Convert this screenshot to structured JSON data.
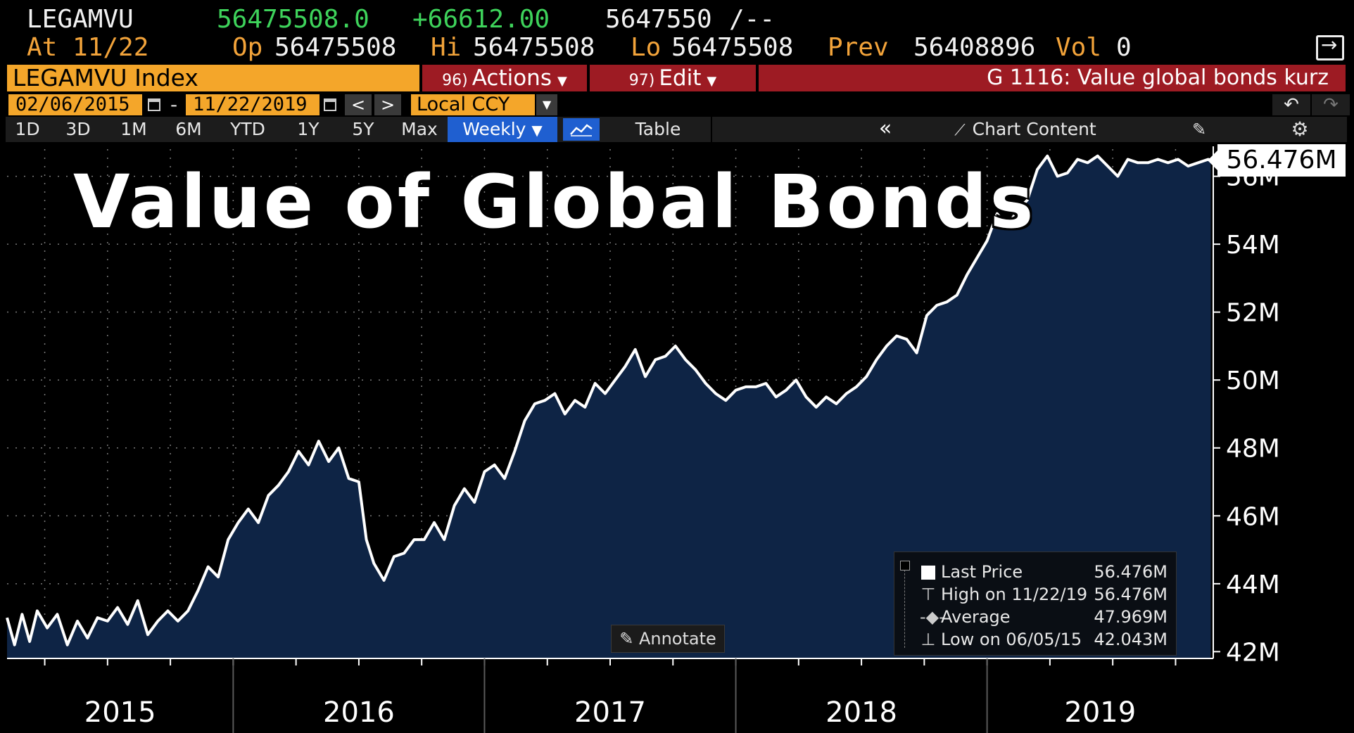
{
  "header": {
    "ticker": "LEGAMVU",
    "last": "56475508.0",
    "change": "+66612.00",
    "bid_ask": "5647550",
    "bid_ask_tail": "/--",
    "as_of": "At 11/22",
    "open_label": "Op",
    "open": "56475508",
    "high_label": "Hi",
    "high": "56475508",
    "low_label": "Lo",
    "low": "56475508",
    "prev_label": "Prev",
    "prev": "56408896",
    "vol_label": "Vol",
    "vol": "0",
    "export_icon": "export-icon"
  },
  "command_bar": {
    "security": "LEGAMVU Index",
    "actions_num": "96)",
    "actions_label": "Actions",
    "edit_num": "97)",
    "edit_label": "Edit",
    "title": "G 1116: Value global bonds kurz"
  },
  "date_bar": {
    "start": "02/06/2015",
    "separator": "-",
    "end": "11/22/2019",
    "prev": "<",
    "next": ">",
    "currency": "Local CCY"
  },
  "period_bar": {
    "periods": [
      "1D",
      "3D",
      "1M",
      "6M",
      "YTD",
      "1Y",
      "5Y",
      "Max"
    ],
    "frequency": "Weekly",
    "table": "Table",
    "collapse": "«",
    "chart_content": "Chart Content"
  },
  "annotate": "Annotate",
  "legend": {
    "last_label": "Last Price",
    "last_value": "56.476M",
    "high_label": "High on 11/22/19",
    "high_value": "56.476M",
    "avg_label": "Average",
    "avg_value": "47.969M",
    "low_label": "Low on 06/05/15",
    "low_value": "42.043M"
  },
  "colors": {
    "background": "#000000",
    "area_fill": "#0e2445",
    "line": "#ffffff",
    "accent_orange": "#f4a62a",
    "accent_red": "#9d1b23",
    "accent_green": "#3ed35b",
    "active_blue": "#1f5fd0"
  },
  "chart_data": {
    "type": "area",
    "title": "Value of Global Bonds",
    "xlabel": "",
    "ylabel": "",
    "x_ticks": [
      "2015",
      "2016",
      "2017",
      "2018",
      "2019"
    ],
    "y_ticks": [
      "42M",
      "44M",
      "46M",
      "48M",
      "50M",
      "52M",
      "54M",
      "56M"
    ],
    "ylim": [
      41.8,
      56.8
    ],
    "xlim": [
      2015.1,
      2019.9
    ],
    "last_value_label": "56.476M",
    "grid": true,
    "legend_position": "bottom-right",
    "series": [
      {
        "name": "Last Price",
        "x": [
          2015.1,
          2015.13,
          2015.16,
          2015.19,
          2015.22,
          2015.26,
          2015.3,
          2015.34,
          2015.38,
          2015.42,
          2015.46,
          2015.5,
          2015.54,
          2015.58,
          2015.62,
          2015.66,
          2015.7,
          2015.74,
          2015.78,
          2015.82,
          2015.86,
          2015.9,
          2015.94,
          2015.98,
          2016.02,
          2016.06,
          2016.1,
          2016.14,
          2016.18,
          2016.22,
          2016.26,
          2016.3,
          2016.34,
          2016.38,
          2016.42,
          2016.46,
          2016.5,
          2016.53,
          2016.56,
          2016.6,
          2016.64,
          2016.68,
          2016.72,
          2016.76,
          2016.8,
          2016.84,
          2016.88,
          2016.92,
          2016.96,
          2017.0,
          2017.04,
          2017.08,
          2017.12,
          2017.16,
          2017.2,
          2017.24,
          2017.28,
          2017.32,
          2017.36,
          2017.4,
          2017.44,
          2017.48,
          2017.52,
          2017.56,
          2017.6,
          2017.64,
          2017.68,
          2017.72,
          2017.76,
          2017.8,
          2017.84,
          2017.88,
          2017.92,
          2017.96,
          2018.0,
          2018.04,
          2018.08,
          2018.12,
          2018.16,
          2018.2,
          2018.24,
          2018.28,
          2018.32,
          2018.36,
          2018.4,
          2018.44,
          2018.48,
          2018.52,
          2018.56,
          2018.6,
          2018.64,
          2018.68,
          2018.72,
          2018.76,
          2018.8,
          2018.84,
          2018.88,
          2018.92,
          2018.96,
          2019.0,
          2019.04,
          2019.08,
          2019.12,
          2019.16,
          2019.2,
          2019.24,
          2019.28,
          2019.32,
          2019.36,
          2019.4,
          2019.44,
          2019.48,
          2019.52,
          2019.56,
          2019.6,
          2019.64,
          2019.68,
          2019.72,
          2019.76,
          2019.8,
          2019.84,
          2019.88,
          2019.89
        ],
        "values": [
          43.0,
          42.2,
          43.1,
          42.3,
          43.2,
          42.7,
          43.1,
          42.2,
          42.9,
          42.4,
          43.0,
          42.9,
          43.3,
          42.8,
          43.5,
          42.5,
          42.9,
          43.2,
          42.9,
          43.2,
          43.8,
          44.5,
          44.2,
          45.3,
          45.8,
          46.2,
          45.8,
          46.6,
          46.9,
          47.3,
          47.9,
          47.5,
          48.2,
          47.6,
          48.0,
          47.1,
          47.0,
          45.3,
          44.6,
          44.1,
          44.8,
          44.9,
          45.3,
          45.3,
          45.8,
          45.3,
          46.3,
          46.8,
          46.4,
          47.3,
          47.5,
          47.1,
          47.9,
          48.8,
          49.3,
          49.4,
          49.6,
          49.0,
          49.4,
          49.2,
          49.9,
          49.6,
          50.0,
          50.4,
          50.9,
          50.1,
          50.6,
          50.7,
          51.0,
          50.6,
          50.3,
          49.9,
          49.6,
          49.4,
          49.7,
          49.8,
          49.8,
          49.9,
          49.5,
          49.7,
          50.0,
          49.5,
          49.2,
          49.5,
          49.3,
          49.6,
          49.8,
          50.1,
          50.6,
          51.0,
          51.3,
          51.2,
          50.8,
          51.9,
          52.2,
          52.3,
          52.5,
          53.1,
          53.6,
          54.1,
          54.9,
          54.5,
          55.0,
          55.3,
          56.2,
          56.6,
          56.0,
          56.1,
          56.5,
          56.4,
          56.6,
          56.3,
          56.0,
          56.5,
          56.4,
          56.4,
          56.5,
          56.4,
          56.5,
          56.3,
          56.4,
          56.5,
          56.476
        ]
      }
    ]
  }
}
